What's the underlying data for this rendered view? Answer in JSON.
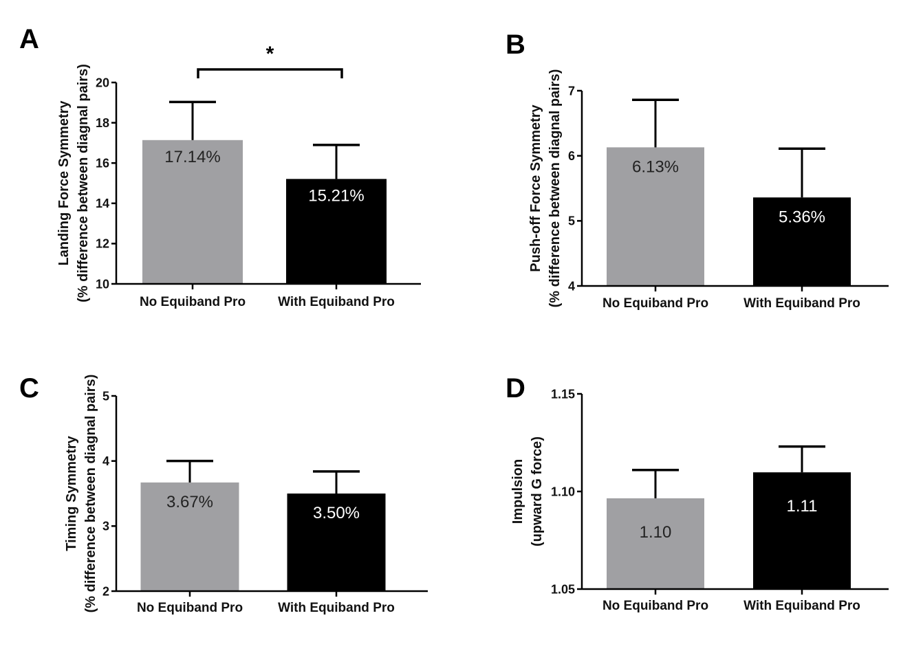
{
  "chart_data": [
    {
      "panel": "A",
      "type": "bar",
      "categories": [
        "No Equiband Pro",
        "With Equiband Pro"
      ],
      "values": [
        17.14,
        15.21
      ],
      "error_upper": [
        19.03,
        16.9
      ],
      "data_labels": [
        "17.14%",
        "15.21%"
      ],
      "bar_colors": [
        "#a0a0a3",
        "#000000"
      ],
      "ylabel_line1": "Landing  Force Symmetry",
      "ylabel_line2": "(% difference between diagnal pairs)",
      "ylim": [
        10,
        20
      ],
      "yticks": [
        10,
        12,
        14,
        16,
        18,
        20
      ],
      "ytick_labels": [
        "10",
        "12",
        "14",
        "16",
        "18",
        "20"
      ],
      "significance": {
        "between": [
          0,
          1
        ],
        "marker": "*"
      }
    },
    {
      "panel": "B",
      "type": "bar",
      "categories": [
        "No Equiband Pro",
        "With Equiband Pro"
      ],
      "values": [
        6.13,
        5.36
      ],
      "error_upper": [
        6.86,
        6.11
      ],
      "data_labels": [
        "6.13%",
        "5.36%"
      ],
      "bar_colors": [
        "#a0a0a3",
        "#000000"
      ],
      "ylabel_line1": "Push-off Force Symmetry",
      "ylabel_line2": "(% difference between diagnal pairs)",
      "ylim": [
        4,
        7
      ],
      "yticks": [
        4,
        5,
        6,
        7
      ],
      "ytick_labels": [
        "4",
        "5",
        "6",
        "7"
      ]
    },
    {
      "panel": "C",
      "type": "bar",
      "categories": [
        "No Equiband Pro",
        "With Equiband Pro"
      ],
      "values": [
        3.67,
        3.5
      ],
      "error_upper": [
        4.0,
        3.84
      ],
      "data_labels": [
        "3.67%",
        "3.50%"
      ],
      "bar_colors": [
        "#a0a0a3",
        "#000000"
      ],
      "ylabel_line1": "Timing Symmetry",
      "ylabel_line2": "(% difference between diagnal pairs)",
      "ylim": [
        2,
        5
      ],
      "yticks": [
        2,
        3,
        4,
        5
      ],
      "ytick_labels": [
        "2",
        "3",
        "4",
        "5"
      ]
    },
    {
      "panel": "D",
      "type": "bar",
      "categories": [
        "No Equiband Pro",
        "With Equiband Pro"
      ],
      "values": [
        1.0965,
        1.1098
      ],
      "error_upper": [
        1.111,
        1.123
      ],
      "data_labels": [
        "1.10",
        "1.11"
      ],
      "bar_colors": [
        "#a0a0a3",
        "#000000"
      ],
      "ylabel_line1": "Impulsion",
      "ylabel_line2": "(upward G force)",
      "ylim": [
        1.05,
        1.15
      ],
      "yticks": [
        1.05,
        1.1,
        1.15
      ],
      "ytick_labels": [
        "1.05",
        "1.10",
        "1.15"
      ]
    }
  ]
}
